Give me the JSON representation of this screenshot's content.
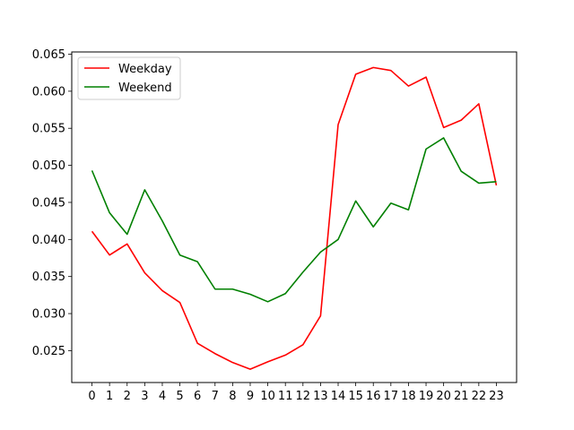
{
  "chart_data": {
    "type": "line",
    "title": "",
    "xlabel": "",
    "ylabel": "",
    "x": [
      0,
      1,
      2,
      3,
      4,
      5,
      6,
      7,
      8,
      9,
      10,
      11,
      12,
      13,
      14,
      15,
      16,
      17,
      18,
      19,
      20,
      21,
      22,
      23
    ],
    "x_tick_labels": [
      "0",
      "1",
      "2",
      "3",
      "4",
      "5",
      "6",
      "7",
      "8",
      "9",
      "10",
      "11",
      "12",
      "13",
      "14",
      "15",
      "16",
      "17",
      "18",
      "19",
      "20",
      "21",
      "22",
      "23"
    ],
    "xlim": [
      -1.15,
      24.15
    ],
    "ylim": [
      0.0207,
      0.0653
    ],
    "y_ticks": [
      0.025,
      0.03,
      0.035,
      0.04,
      0.045,
      0.05,
      0.055,
      0.06,
      0.065
    ],
    "y_tick_labels": [
      "0.025",
      "0.030",
      "0.035",
      "0.040",
      "0.045",
      "0.050",
      "0.055",
      "0.060",
      "0.065"
    ],
    "grid": false,
    "legend_position": "top-left",
    "series": [
      {
        "name": "Weekday",
        "color": "#ff0000",
        "values": [
          0.0411,
          0.0379,
          0.0394,
          0.0355,
          0.0331,
          0.0315,
          0.026,
          0.0246,
          0.0234,
          0.0225,
          0.0235,
          0.0244,
          0.0258,
          0.0297,
          0.0555,
          0.0623,
          0.0632,
          0.0628,
          0.0607,
          0.0619,
          0.0551,
          0.0561,
          0.0583,
          0.0473
        ]
      },
      {
        "name": "Weekend",
        "color": "#008000",
        "values": [
          0.0493,
          0.0436,
          0.0407,
          0.0467,
          0.0425,
          0.0379,
          0.037,
          0.0333,
          0.0333,
          0.0326,
          0.0316,
          0.0327,
          0.0356,
          0.0383,
          0.04,
          0.0452,
          0.0417,
          0.0449,
          0.044,
          0.0522,
          0.0537,
          0.0492,
          0.0476,
          0.0478
        ]
      }
    ]
  }
}
